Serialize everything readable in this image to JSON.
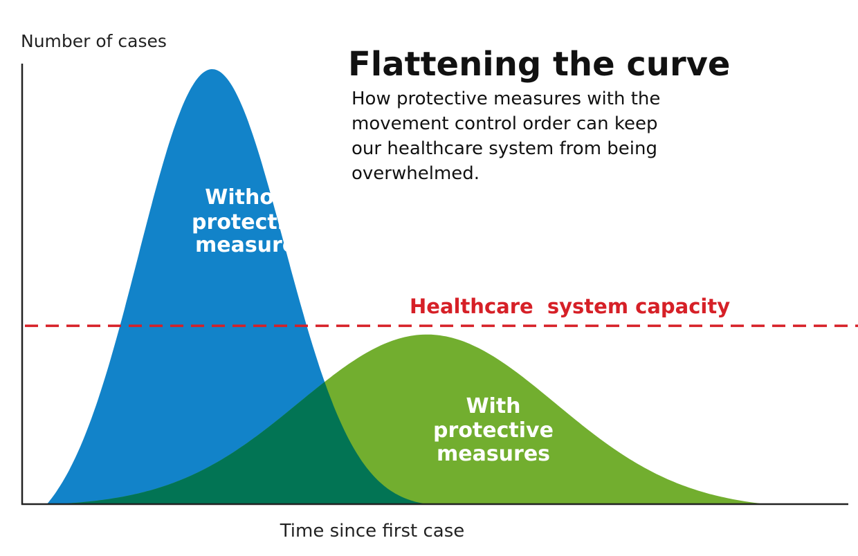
{
  "chart_data": {
    "type": "area",
    "title": "Flattening the curve",
    "subtitle_lines": [
      "How protective measures with the",
      "movement control order can keep",
      "our healthcare system from being",
      "overwhelmed."
    ],
    "xlabel": "Time since first case",
    "ylabel": "Number of cases",
    "grid": false,
    "series": [
      {
        "name_lines": [
          "Without",
          "protective",
          "measures"
        ],
        "color": "#1283c9",
        "peak": 100,
        "peak_time": 23,
        "width": 8.8,
        "start": 3,
        "end": 49
      },
      {
        "name_lines": [
          "With",
          "protective",
          "measures"
        ],
        "color": "#72ae2f",
        "peak": 39,
        "peak_time": 49,
        "width": 15.5,
        "start": 4,
        "end": 90
      }
    ],
    "overlap_color": "#027454",
    "capacity": {
      "label": "Healthcare  system capacity",
      "value": 41,
      "color": "#d62027"
    },
    "axis_color": "#222222",
    "xlim": [
      0,
      100
    ],
    "ylim": [
      0,
      100
    ]
  }
}
